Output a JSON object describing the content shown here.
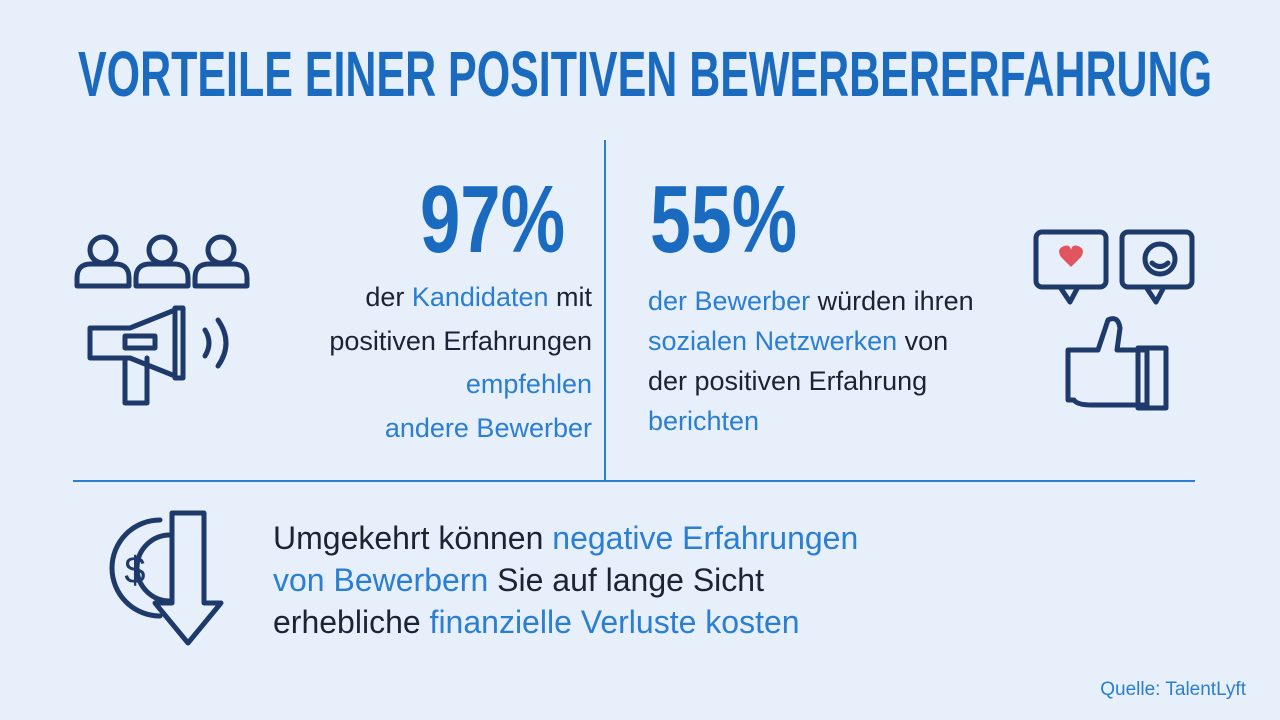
{
  "title": "VORTEILE EINER POSITIVEN BEWERBERERFAHRUNG",
  "stats": [
    {
      "value": "97%",
      "lines": [
        [
          "der ",
          "Kandidaten",
          " mit"
        ],
        [
          "positiven Erfahrungen"
        ],
        [
          "empfehlen"
        ],
        [
          "andere Bewerber"
        ]
      ]
    },
    {
      "value": "55%",
      "lines": [
        [
          "der Bewerber",
          " würden ihren"
        ],
        [
          "sozialen Netzwerken",
          " von"
        ],
        [
          "der positiven Erfahrung"
        ],
        [
          "berichten"
        ]
      ]
    }
  ],
  "bottom": [
    [
      "Umgekehrt können ",
      "negative Erfahrungen"
    ],
    [
      "von Bewerbern",
      " Sie auf lange Sicht"
    ],
    [
      "erhebliche ",
      "finanzielle Verluste kosten"
    ]
  ],
  "source": "Quelle: TalentLyft"
}
